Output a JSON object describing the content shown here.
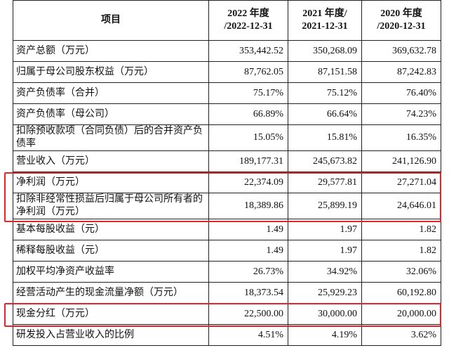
{
  "table": {
    "header": {
      "item": "项目",
      "columns": [
        {
          "year": "2022 年度",
          "date": "/2022-12-31"
        },
        {
          "year": "2021 年度/",
          "date": "2021-12-31"
        },
        {
          "year": "2020 年度",
          "date": "/2020-12-31"
        }
      ]
    },
    "rows": [
      [
        "资产总额（万元）",
        "353,442.52",
        "350,268.09",
        "369,632.78"
      ],
      [
        "归属于母公司股东权益（万元）",
        "87,762.05",
        "87,151.58",
        "87,242.83"
      ],
      [
        "资产负债率（合并）",
        "75.17%",
        "75.12%",
        "76.40%"
      ],
      [
        "资产负债率（母公司）",
        "66.89%",
        "66.64%",
        "74.23%"
      ],
      [
        "扣除预收款项（合同负债）后的合并资产负债率",
        "15.05%",
        "15.81%",
        "16.35%"
      ],
      [
        "营业收入（万元）",
        "189,177.31",
        "245,673.82",
        "241,126.90"
      ],
      [
        "净利润（万元）",
        "22,374.09",
        "29,577.81",
        "27,271.04"
      ],
      [
        "扣除非经常性损益后归属于母公司所有者的净利润（万元）",
        "18,389.86",
        "25,899.19",
        "24,646.01"
      ],
      [
        "基本每股收益（元）",
        "1.49",
        "1.97",
        "1.82"
      ],
      [
        "稀释每股收益（元）",
        "1.49",
        "1.97",
        "1.82"
      ],
      [
        "加权平均净资产收益率",
        "26.73%",
        "34.92%",
        "32.06%"
      ],
      [
        "经营活动产生的现金流量净额（万元）",
        "18,373.54",
        "25,929.23",
        "60,192.80"
      ],
      [
        "现金分红（万元）",
        "22,500.00",
        "30,000.00",
        "20,000.00"
      ],
      [
        "研发投入占营业收入的比例",
        "4.51%",
        "4.19%",
        "3.62%"
      ]
    ]
  }
}
